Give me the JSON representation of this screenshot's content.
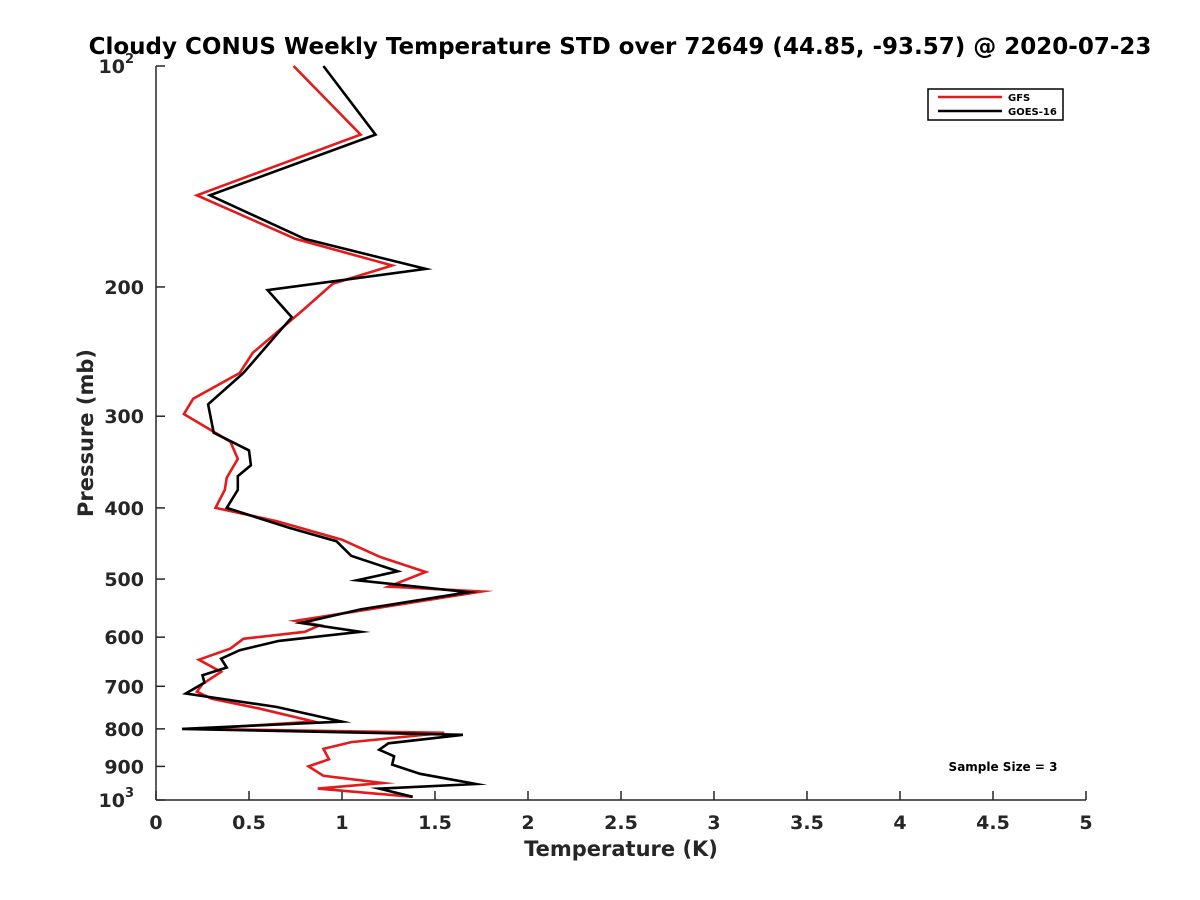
{
  "chart_data": {
    "type": "line",
    "title": "Cloudy CONUS Weekly Temperature STD over 72649 (44.85, -93.57) @ 2020-07-23",
    "xlabel": "Temperature (K)",
    "ylabel": "Pressure (mb)",
    "xlim": [
      0,
      5
    ],
    "ylim": [
      100,
      1000
    ],
    "y_scale": "log",
    "y_reversed": true,
    "grid": false,
    "legend_position": "top-right",
    "x_ticks": [
      {
        "value": 0,
        "label": "0"
      },
      {
        "value": 0.5,
        "label": "0.5"
      },
      {
        "value": 1,
        "label": "1"
      },
      {
        "value": 1.5,
        "label": "1.5"
      },
      {
        "value": 2,
        "label": "2"
      },
      {
        "value": 2.5,
        "label": "2.5"
      },
      {
        "value": 3,
        "label": "3"
      },
      {
        "value": 3.5,
        "label": "3.5"
      },
      {
        "value": 4,
        "label": "4"
      },
      {
        "value": 4.5,
        "label": "4.5"
      },
      {
        "value": 5,
        "label": "5"
      }
    ],
    "y_ticks": [
      {
        "value": 100,
        "base": "10",
        "exp": "2"
      },
      {
        "value": 200,
        "base": "200",
        "exp": ""
      },
      {
        "value": 300,
        "base": "300",
        "exp": ""
      },
      {
        "value": 400,
        "base": "400",
        "exp": ""
      },
      {
        "value": 500,
        "base": "500",
        "exp": ""
      },
      {
        "value": 600,
        "base": "600",
        "exp": ""
      },
      {
        "value": 700,
        "base": "700",
        "exp": ""
      },
      {
        "value": 800,
        "base": "800",
        "exp": ""
      },
      {
        "value": 900,
        "base": "900",
        "exp": ""
      },
      {
        "value": 1000,
        "base": "10",
        "exp": "3"
      }
    ],
    "series": [
      {
        "name": "GFS",
        "color": "#e41a1c",
        "points": [
          [
            0.74,
            100
          ],
          [
            1.1,
            124
          ],
          [
            0.22,
            150
          ],
          [
            0.75,
            172
          ],
          [
            1.27,
            187
          ],
          [
            0.95,
            198
          ],
          [
            0.8,
            214
          ],
          [
            0.52,
            246
          ],
          [
            0.45,
            262
          ],
          [
            0.2,
            284
          ],
          [
            0.15,
            298
          ],
          [
            0.4,
            325
          ],
          [
            0.44,
            343
          ],
          [
            0.38,
            364
          ],
          [
            0.37,
            378
          ],
          [
            0.32,
            400
          ],
          [
            0.65,
            417
          ],
          [
            1.0,
            442
          ],
          [
            1.2,
            466
          ],
          [
            1.45,
            489
          ],
          [
            1.25,
            512
          ],
          [
            1.75,
            520
          ],
          [
            1.18,
            548
          ],
          [
            0.75,
            570
          ],
          [
            0.88,
            578
          ],
          [
            0.8,
            590
          ],
          [
            0.47,
            603
          ],
          [
            0.4,
            622
          ],
          [
            0.23,
            644
          ],
          [
            0.35,
            669
          ],
          [
            0.25,
            695
          ],
          [
            0.22,
            712
          ],
          [
            0.3,
            728
          ],
          [
            0.55,
            750
          ],
          [
            0.85,
            782
          ],
          [
            0.23,
            800
          ],
          [
            1.55,
            810
          ],
          [
            1.05,
            834
          ],
          [
            0.9,
            852
          ],
          [
            0.93,
            880
          ],
          [
            0.82,
            900
          ],
          [
            0.9,
            927
          ],
          [
            1.22,
            948
          ],
          [
            0.87,
            965
          ],
          [
            1.38,
            990
          ]
        ]
      },
      {
        "name": "GOES-16",
        "color": "#000000",
        "points": [
          [
            0.9,
            100
          ],
          [
            1.18,
            124
          ],
          [
            0.29,
            150
          ],
          [
            0.8,
            172
          ],
          [
            1.45,
            189
          ],
          [
            0.6,
            202
          ],
          [
            0.73,
            220
          ],
          [
            0.65,
            232
          ],
          [
            0.47,
            262
          ],
          [
            0.28,
            289
          ],
          [
            0.31,
            316
          ],
          [
            0.5,
            334
          ],
          [
            0.51,
            350
          ],
          [
            0.44,
            362
          ],
          [
            0.44,
            378
          ],
          [
            0.38,
            400
          ],
          [
            0.72,
            426
          ],
          [
            0.97,
            444
          ],
          [
            1.05,
            465
          ],
          [
            1.3,
            488
          ],
          [
            1.08,
            502
          ],
          [
            1.68,
            521
          ],
          [
            1.1,
            550
          ],
          [
            0.78,
            574
          ],
          [
            1.1,
            590
          ],
          [
            0.66,
            607
          ],
          [
            0.45,
            625
          ],
          [
            0.35,
            642
          ],
          [
            0.38,
            660
          ],
          [
            0.25,
            676
          ],
          [
            0.26,
            692
          ],
          [
            0.16,
            716
          ],
          [
            0.65,
            747
          ],
          [
            1.0,
            782
          ],
          [
            0.14,
            800
          ],
          [
            1.65,
            815
          ],
          [
            1.25,
            837
          ],
          [
            1.2,
            854
          ],
          [
            1.28,
            872
          ],
          [
            1.27,
            895
          ],
          [
            1.42,
            921
          ],
          [
            1.72,
            951
          ],
          [
            1.2,
            965
          ],
          [
            1.38,
            990
          ]
        ]
      }
    ],
    "annotation": "Sample Size = 3"
  }
}
